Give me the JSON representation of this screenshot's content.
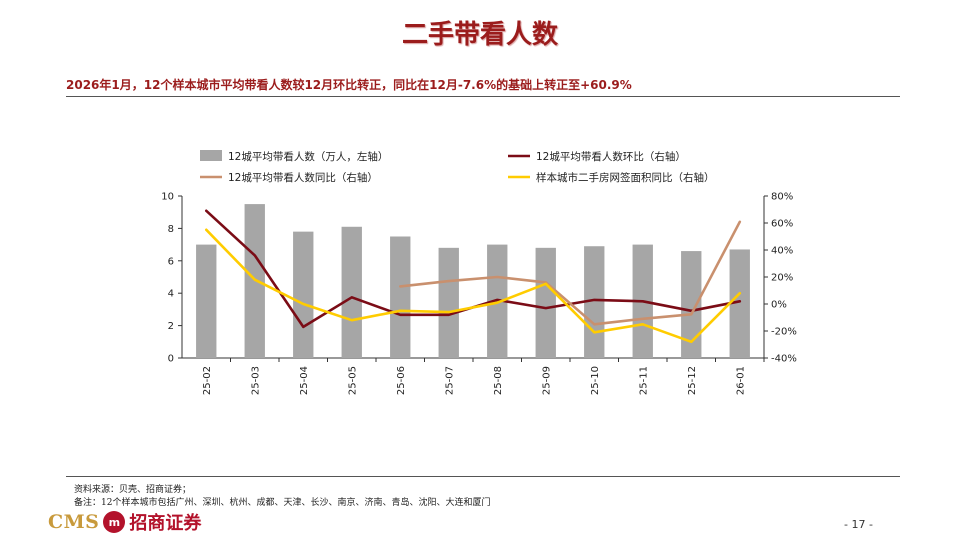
{
  "page": {
    "title": "二手带看人数",
    "subtitle": "2026年1月，12个样本城市平均带看人数较12月环比转正，同比在12月-7.6%的基础上转正至+60.9%",
    "source_line1": "资料来源：贝壳、招商证券；",
    "source_line2": "备注：12个样本城市包括广州、深圳、杭州、成都、天津、长沙、南京、济南、青岛、沈阳、大连和厦门",
    "logo_cms": "CMS",
    "logo_mark": "m",
    "logo_name": "招商证券",
    "page_number": "- 17 -"
  },
  "chart_data": {
    "type": "bar",
    "categories": [
      "25-02",
      "25-03",
      "25-04",
      "25-05",
      "25-06",
      "25-07",
      "25-08",
      "25-09",
      "25-10",
      "25-11",
      "25-12",
      "26-01"
    ],
    "left_axis": {
      "ylim": [
        0,
        10
      ],
      "ticks": [
        "0",
        "2",
        "4",
        "6",
        "8",
        "10"
      ]
    },
    "right_axis": {
      "ylim": [
        -40,
        80
      ],
      "ticks": [
        "-40%",
        "-20%",
        "0%",
        "20%",
        "40%",
        "60%",
        "80%"
      ]
    },
    "series": [
      {
        "name": "12城平均带看人数（万人，左轴）",
        "type": "bar",
        "axis": "left",
        "color": "#a6a6a6",
        "values": [
          7.0,
          9.5,
          7.8,
          8.1,
          7.5,
          6.8,
          7.0,
          6.8,
          6.9,
          7.0,
          6.6,
          6.7
        ]
      },
      {
        "name": "12城平均带看人数环比（右轴）",
        "type": "line",
        "axis": "right",
        "color": "#7b0c16",
        "values": [
          69,
          36,
          -17,
          5,
          -8,
          -8,
          3,
          -3,
          3,
          2,
          -5,
          2
        ]
      },
      {
        "name": "12城平均带看人数同比（右轴）",
        "type": "line",
        "axis": "right",
        "color": "#c9906e",
        "values": [
          null,
          null,
          null,
          null,
          13,
          17,
          20,
          16,
          -15,
          -11,
          -7.6,
          60.9
        ]
      },
      {
        "name": "样本城市二手房网签面积同比（右轴）",
        "type": "line",
        "axis": "right",
        "color": "#ffcc00",
        "values": [
          55,
          18,
          0,
          -12,
          -5,
          -6,
          1,
          15,
          -21,
          -15,
          -28,
          8
        ]
      }
    ]
  }
}
